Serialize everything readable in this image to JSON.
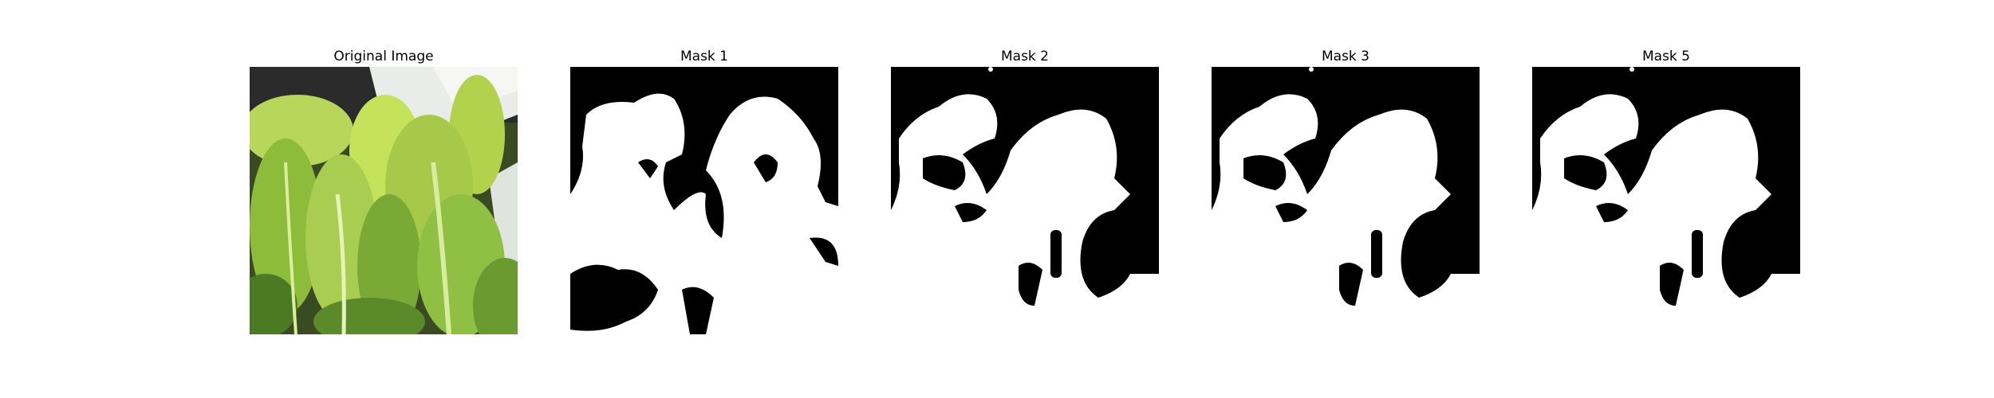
{
  "figure": {
    "panels": [
      {
        "title": "Original Image"
      },
      {
        "title": "Mask 1"
      },
      {
        "title": "Mask 2"
      },
      {
        "title": "Mask 3"
      },
      {
        "title": "Mask 5"
      }
    ]
  },
  "colors": {
    "mask_foreground": "#ffffff",
    "mask_background": "#000000",
    "leaf_light": "#c5e35a",
    "leaf_mid": "#8dbb3a",
    "leaf_dark": "#4a7a24",
    "background_dark": "#2b2b2b",
    "window_sill": "#e9ece8"
  }
}
